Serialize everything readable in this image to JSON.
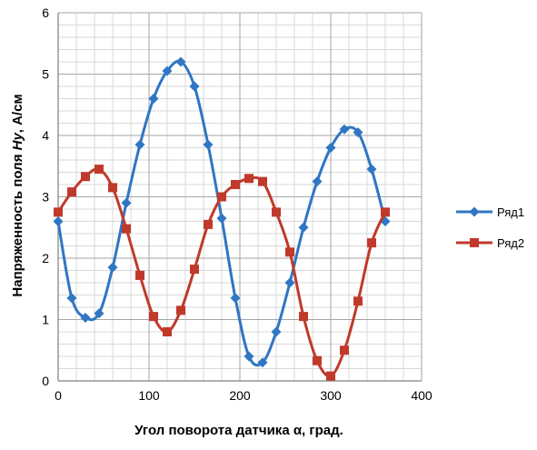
{
  "chart_data": {
    "type": "line",
    "xlabel": "Угол поворота датчика α, град.",
    "ylabel_prefix": "Напряженность поля ",
    "ylabel_italic": "Hy",
    "ylabel_suffix": ", А/см",
    "xlim": [
      0,
      400
    ],
    "ylim": [
      0,
      6
    ],
    "xticks": [
      0,
      100,
      200,
      300,
      400
    ],
    "yticks": [
      0,
      1,
      2,
      3,
      4,
      5,
      6
    ],
    "x_minor_step": 20,
    "y_minor_step": 0.2,
    "grid": true,
    "legend_position": "right",
    "series": [
      {
        "name": "Ряд1",
        "color": "#2f76c4",
        "marker": "diamond",
        "x": [
          0,
          15,
          30,
          45,
          60,
          75,
          90,
          105,
          120,
          135,
          150,
          165,
          180,
          195,
          210,
          225,
          240,
          255,
          270,
          285,
          300,
          315,
          330,
          345,
          360
        ],
        "y": [
          2.6,
          1.35,
          1.03,
          1.1,
          1.85,
          2.9,
          3.85,
          4.6,
          5.05,
          5.2,
          4.8,
          3.85,
          2.65,
          1.35,
          0.4,
          0.3,
          0.8,
          1.6,
          2.5,
          3.25,
          3.8,
          4.1,
          4.05,
          3.45,
          2.6
        ]
      },
      {
        "name": "Ряд2",
        "color": "#c0392b",
        "marker": "square",
        "x": [
          0,
          15,
          30,
          45,
          60,
          75,
          90,
          105,
          120,
          135,
          150,
          165,
          180,
          195,
          210,
          225,
          240,
          255,
          270,
          285,
          300,
          315,
          330,
          345,
          360
        ],
        "y": [
          2.75,
          3.08,
          3.33,
          3.45,
          3.15,
          2.48,
          1.72,
          1.05,
          0.8,
          1.15,
          1.82,
          2.55,
          3.0,
          3.2,
          3.3,
          3.25,
          2.75,
          2.1,
          1.05,
          0.33,
          0.08,
          0.5,
          1.3,
          2.25,
          2.75
        ]
      }
    ]
  }
}
